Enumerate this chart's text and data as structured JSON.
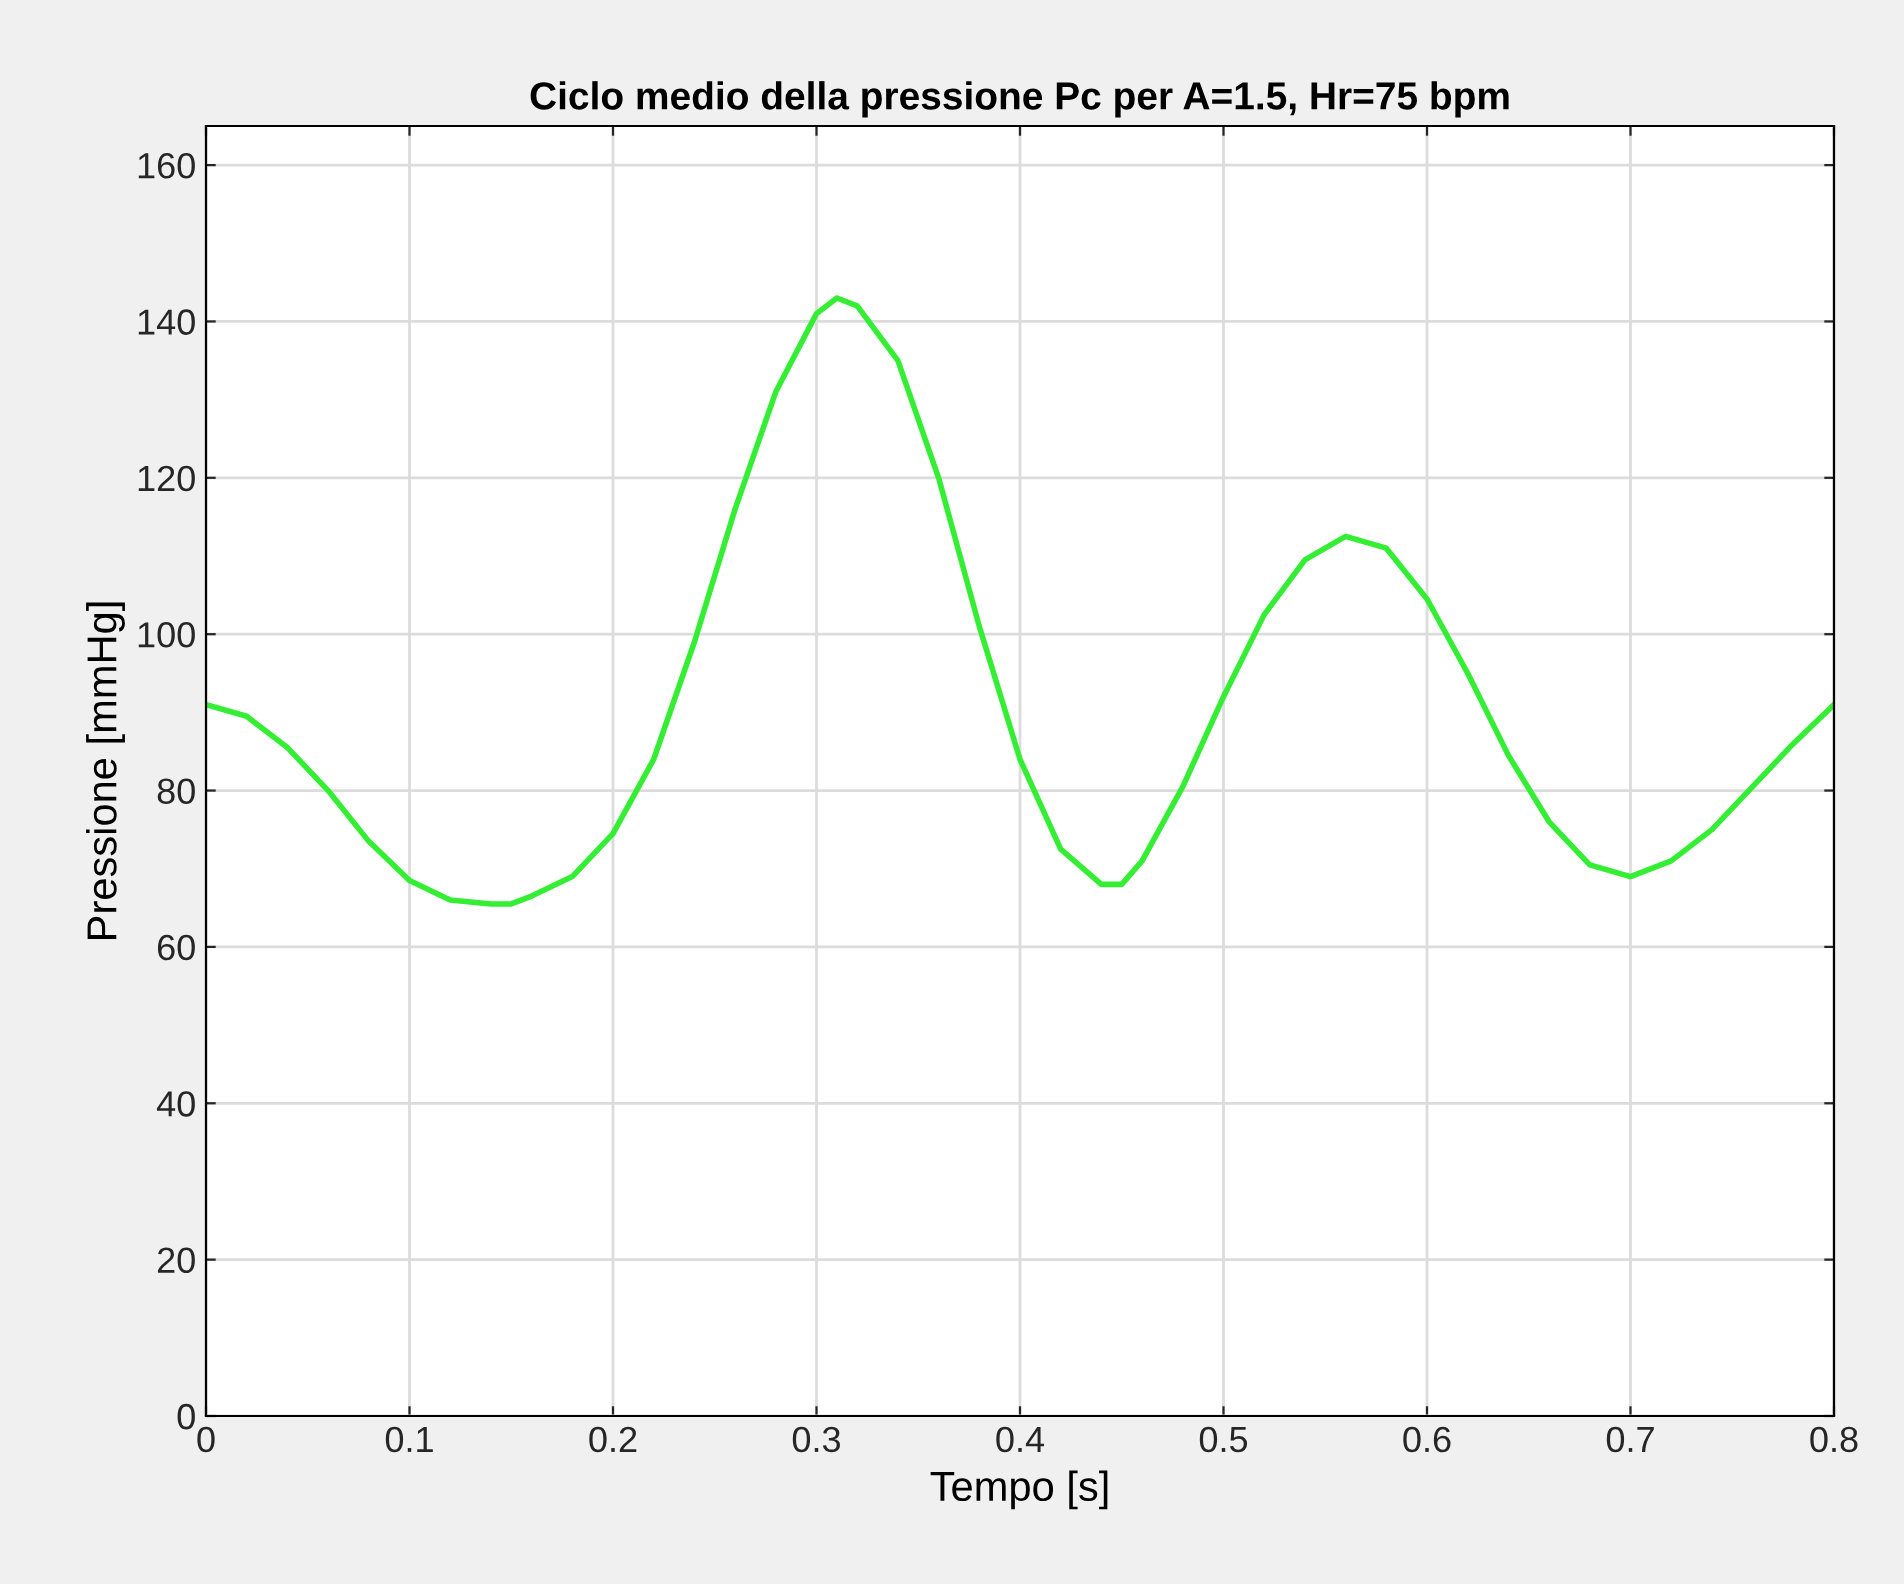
{
  "chart_data": {
    "type": "line",
    "title": "Ciclo medio della pressione Pc per A=1.5, Hr=75 bpm",
    "xlabel": "Tempo [s]",
    "ylabel": "Pressione [mmHg]",
    "x": [
      0,
      0.02,
      0.04,
      0.06,
      0.08,
      0.1,
      0.12,
      0.14,
      0.15,
      0.16,
      0.18,
      0.2,
      0.22,
      0.24,
      0.26,
      0.28,
      0.3,
      0.31,
      0.32,
      0.34,
      0.36,
      0.38,
      0.4,
      0.42,
      0.44,
      0.45,
      0.46,
      0.48,
      0.5,
      0.52,
      0.54,
      0.56,
      0.58,
      0.6,
      0.62,
      0.64,
      0.66,
      0.68,
      0.7,
      0.72,
      0.74,
      0.76,
      0.78,
      0.8
    ],
    "series": [
      {
        "color": "#33ee33",
        "values": [
          91,
          89.5,
          85.5,
          80,
          73.5,
          68.5,
          66,
          65.5,
          65.5,
          66.5,
          69,
          74.5,
          84,
          99,
          116,
          131,
          141,
          143,
          142,
          135,
          120,
          101,
          84,
          72.5,
          68,
          68,
          71,
          80.5,
          92,
          102.5,
          109.5,
          112.5,
          111,
          104.5,
          95,
          84.5,
          76,
          70.5,
          69,
          71,
          75,
          80.5,
          86,
          91
        ]
      }
    ],
    "xlim": [
      0,
      0.8
    ],
    "ylim": [
      0,
      165
    ],
    "xticks": [
      0,
      0.1,
      0.2,
      0.3,
      0.4,
      0.5,
      0.6,
      0.7,
      0.8
    ],
    "yticks": [
      0,
      20,
      40,
      60,
      80,
      100,
      120,
      140,
      160
    ],
    "grid": true,
    "legend": false
  }
}
